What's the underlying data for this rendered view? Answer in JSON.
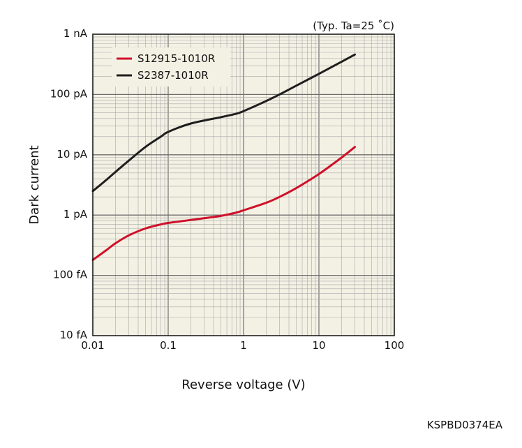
{
  "chart_data": {
    "type": "line",
    "conditions": "(Typ. Ta=25 ˚C)",
    "xlabel": "Reverse voltage (V)",
    "ylabel": "Dark current",
    "x_scale": "log",
    "y_scale": "log",
    "xlim": [
      0.01,
      100
    ],
    "ylim": [
      1e-14,
      1e-09
    ],
    "x_ticks": [
      {
        "value": 0.01,
        "label": "0.01"
      },
      {
        "value": 0.1,
        "label": "0.1"
      },
      {
        "value": 1,
        "label": "1"
      },
      {
        "value": 10,
        "label": "10"
      },
      {
        "value": 100,
        "label": "100"
      }
    ],
    "y_ticks": [
      {
        "value": 1e-14,
        "label": "10 fA"
      },
      {
        "value": 1e-13,
        "label": "100 fA"
      },
      {
        "value": 1e-12,
        "label": "1 pA"
      },
      {
        "value": 1e-11,
        "label": "10 pA"
      },
      {
        "value": 1e-10,
        "label": "100 pA"
      },
      {
        "value": 1e-09,
        "label": "1 nA"
      }
    ],
    "grid": true,
    "legend_position": "top-left",
    "series": [
      {
        "name": "S12915-1010R",
        "color": "#d0102a",
        "x": [
          0.01,
          0.015,
          0.02,
          0.03,
          0.05,
          0.08,
          0.1,
          0.2,
          0.5,
          0.8,
          1,
          2,
          3,
          5,
          10,
          20,
          30
        ],
        "y": [
          1.8e-13,
          2.6e-13,
          3.4e-13,
          4.6e-13,
          6e-13,
          7e-13,
          7.4e-13,
          8.3e-13,
          9.7e-13,
          1.1e-12,
          1.2e-12,
          1.6e-12,
          2e-12,
          2.8e-12,
          4.8e-12,
          9e-12,
          1.35e-11
        ]
      },
      {
        "name": "S2387-1010R",
        "color": "#1e1e1e",
        "x": [
          0.01,
          0.015,
          0.02,
          0.03,
          0.05,
          0.08,
          0.1,
          0.2,
          0.5,
          0.8,
          1,
          2,
          3,
          5,
          10,
          20,
          30
        ],
        "y": [
          2.5e-12,
          3.8e-12,
          5.2e-12,
          8e-12,
          1.35e-11,
          2e-11,
          2.4e-11,
          3.3e-11,
          4.2e-11,
          4.8e-11,
          5.3e-11,
          7.8e-11,
          1e-10,
          1.4e-10,
          2.2e-10,
          3.5e-10,
          4.6e-10
        ]
      }
    ]
  },
  "figure_code": "KSPBD0374EA"
}
